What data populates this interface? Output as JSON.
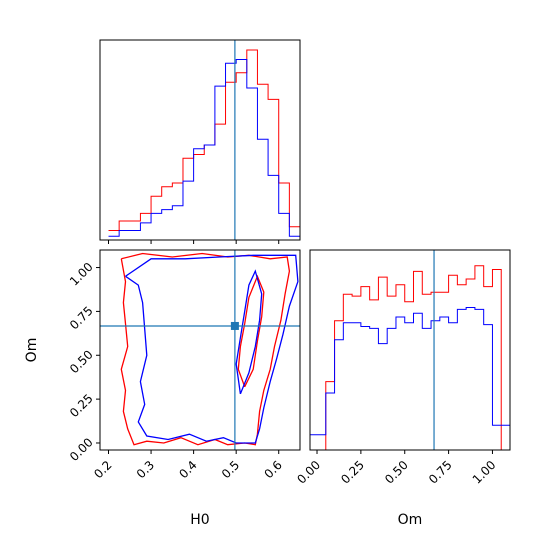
{
  "chart_data": [
    {
      "type": "histogram",
      "panel": "H0-marginal",
      "xlim": [
        0.18,
        0.65
      ],
      "ylim": [
        0,
        1.0
      ],
      "truth": 0.497,
      "xticks": [
        0.2,
        0.3,
        0.4,
        0.5,
        0.6
      ],
      "bin_edges": [
        0.2,
        0.225,
        0.25,
        0.275,
        0.3,
        0.325,
        0.35,
        0.375,
        0.4,
        0.425,
        0.45,
        0.475,
        0.5,
        0.525,
        0.55,
        0.575,
        0.6,
        0.625,
        0.65
      ],
      "series": [
        {
          "color": "#ff0000",
          "values": [
            0.05,
            0.1,
            0.1,
            0.14,
            0.23,
            0.28,
            0.3,
            0.43,
            0.45,
            0.5,
            0.61,
            0.83,
            0.88,
            1.0,
            0.82,
            0.74,
            0.3,
            0.07
          ]
        },
        {
          "color": "#0000ff",
          "values": [
            0.02,
            0.05,
            0.05,
            0.09,
            0.14,
            0.16,
            0.18,
            0.31,
            0.48,
            0.5,
            0.81,
            0.93,
            0.95,
            0.8,
            0.53,
            0.34,
            0.14,
            0.02
          ]
        }
      ]
    },
    {
      "type": "histogram",
      "panel": "Om-marginal",
      "xlim": [
        -0.04,
        1.1
      ],
      "ylim": [
        0,
        1.0
      ],
      "truth": 0.667,
      "xticks": [
        "0.00",
        "0.25",
        "0.50",
        "0.75",
        "1.00"
      ],
      "xlabel": "Om",
      "bin_edges": [
        -0.05,
        0.0,
        0.05,
        0.1,
        0.15,
        0.2,
        0.25,
        0.3,
        0.35,
        0.4,
        0.45,
        0.5,
        0.55,
        0.6,
        0.65,
        0.7,
        0.75,
        0.8,
        0.85,
        0.9,
        0.95,
        1.0,
        1.05,
        1.1
      ],
      "series": [
        {
          "color": "#ff0000",
          "values": [
            0,
            0,
            0.36,
            0.68,
            0.82,
            0.81,
            0.86,
            0.79,
            0.91,
            0.81,
            0.87,
            0.78,
            0.94,
            0.82,
            0.83,
            0.83,
            0.92,
            0.87,
            0.9,
            0.97,
            0.86,
            0.95,
            0
          ]
        },
        {
          "color": "#0000ff",
          "values": [
            0.08,
            0.08,
            0.3,
            0.58,
            0.67,
            0.67,
            0.65,
            0.64,
            0.56,
            0.64,
            0.7,
            0.67,
            0.72,
            0.64,
            0.68,
            0.7,
            0.67,
            0.74,
            0.75,
            0.74,
            0.66,
            0.13,
            0.13
          ]
        }
      ]
    },
    {
      "type": "contour",
      "panel": "H0-Om-joint",
      "xlim": [
        0.18,
        0.65
      ],
      "ylim": [
        -0.04,
        1.1
      ],
      "truth": [
        0.497,
        0.667
      ],
      "xticks": [
        0.2,
        0.3,
        0.4,
        0.5,
        0.6
      ],
      "yticks": [
        "0.00",
        "0.25",
        "0.50",
        "0.75",
        "1.00"
      ],
      "xlabel": "H0",
      "ylabel": "Om",
      "series": [
        {
          "color": "#ff0000",
          "contours": [
            [
              [
                0.23,
                1.05
              ],
              [
                0.28,
                1.08
              ],
              [
                0.35,
                1.06
              ],
              [
                0.42,
                1.08
              ],
              [
                0.48,
                1.06
              ],
              [
                0.53,
                1.07
              ],
              [
                0.58,
                1.05
              ],
              [
                0.62,
                1.06
              ],
              [
                0.625,
                0.98
              ],
              [
                0.615,
                0.85
              ],
              [
                0.605,
                0.7
              ],
              [
                0.59,
                0.55
              ],
              [
                0.58,
                0.42
              ],
              [
                0.565,
                0.3
              ],
              [
                0.555,
                0.18
              ],
              [
                0.55,
                0.05
              ],
              [
                0.545,
                -0.01
              ],
              [
                0.52,
                0.0
              ],
              [
                0.48,
                -0.01
              ],
              [
                0.45,
                0.02
              ],
              [
                0.41,
                -0.01
              ],
              [
                0.37,
                0.03
              ],
              [
                0.33,
                0.0
              ],
              [
                0.29,
                0.01
              ],
              [
                0.26,
                -0.01
              ],
              [
                0.245,
                0.08
              ],
              [
                0.235,
                0.18
              ],
              [
                0.24,
                0.3
              ],
              [
                0.23,
                0.42
              ],
              [
                0.245,
                0.55
              ],
              [
                0.24,
                0.68
              ],
              [
                0.235,
                0.8
              ],
              [
                0.24,
                0.92
              ],
              [
                0.23,
                1.05
              ]
            ],
            [
              [
                0.52,
                0.32
              ],
              [
                0.54,
                0.42
              ],
              [
                0.55,
                0.58
              ],
              [
                0.56,
                0.72
              ],
              [
                0.565,
                0.86
              ],
              [
                0.55,
                0.95
              ],
              [
                0.53,
                0.83
              ],
              [
                0.52,
                0.68
              ],
              [
                0.51,
                0.55
              ],
              [
                0.505,
                0.42
              ],
              [
                0.52,
                0.32
              ]
            ]
          ]
        },
        {
          "color": "#0000ff",
          "contours": [
            [
              [
                0.24,
                0.95
              ],
              [
                0.3,
                1.05
              ],
              [
                0.38,
                1.05
              ],
              [
                0.46,
                1.06
              ],
              [
                0.54,
                1.07
              ],
              [
                0.6,
                1.07
              ],
              [
                0.64,
                1.07
              ],
              [
                0.645,
                0.92
              ],
              [
                0.625,
                0.78
              ],
              [
                0.61,
                0.62
              ],
              [
                0.595,
                0.48
              ],
              [
                0.58,
                0.35
              ],
              [
                0.565,
                0.2
              ],
              [
                0.555,
                0.08
              ],
              [
                0.545,
                0.0
              ],
              [
                0.5,
                0.0
              ],
              [
                0.47,
                0.03
              ],
              [
                0.43,
                0.01
              ],
              [
                0.39,
                0.05
              ],
              [
                0.34,
                0.02
              ],
              [
                0.29,
                0.04
              ],
              [
                0.27,
                0.12
              ],
              [
                0.285,
                0.22
              ],
              [
                0.275,
                0.35
              ],
              [
                0.29,
                0.5
              ],
              [
                0.285,
                0.65
              ],
              [
                0.28,
                0.8
              ],
              [
                0.27,
                0.9
              ],
              [
                0.24,
                0.95
              ]
            ],
            [
              [
                0.51,
                0.28
              ],
              [
                0.53,
                0.4
              ],
              [
                0.545,
                0.55
              ],
              [
                0.555,
                0.7
              ],
              [
                0.56,
                0.85
              ],
              [
                0.545,
                0.98
              ],
              [
                0.53,
                0.9
              ],
              [
                0.52,
                0.75
              ],
              [
                0.51,
                0.6
              ],
              [
                0.5,
                0.45
              ],
              [
                0.51,
                0.28
              ]
            ]
          ]
        }
      ]
    }
  ]
}
